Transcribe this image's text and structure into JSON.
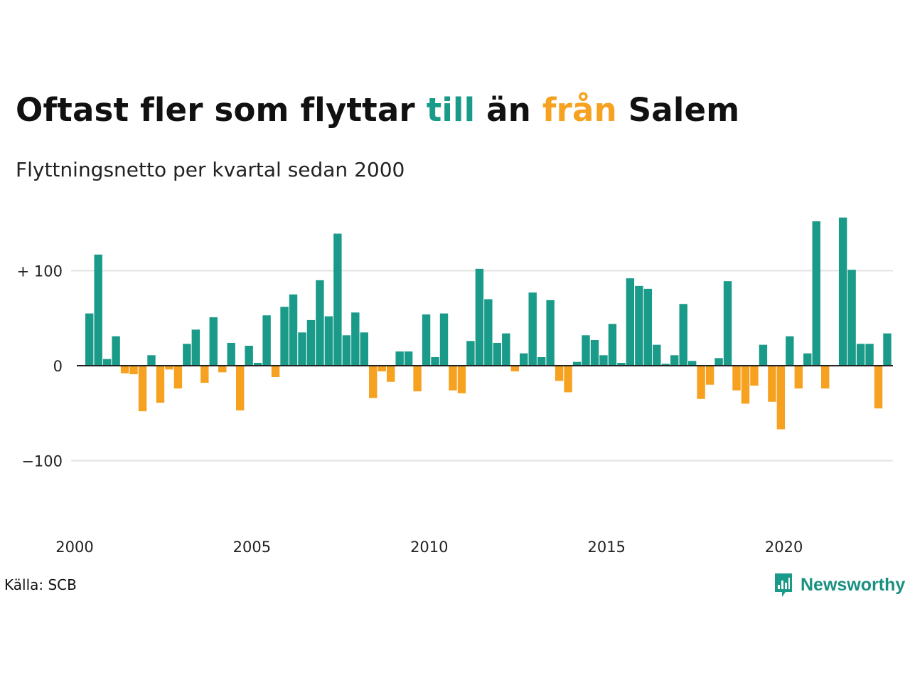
{
  "header": {
    "title_parts": [
      "Oftast fler som flyttar ",
      "till",
      " än ",
      "från",
      " Salem"
    ],
    "subtitle": "Flyttningsnetto per kvartal sedan 2000"
  },
  "colors": {
    "positive": "#1a9a88",
    "negative": "#f6a11f",
    "grid": "#e3e3e3"
  },
  "footer": {
    "source": "Källa: SCB",
    "brand": "Newsworthy"
  },
  "icons": {
    "brand": "newsworthy-logo-icon"
  },
  "chart_data": {
    "type": "bar",
    "title": "Oftast fler som flyttar till än från Salem",
    "subtitle": "Flyttningsnetto per kvartal sedan 2000",
    "xlabel": "",
    "ylabel": "",
    "x_start": "2000Q1",
    "ylim": [
      -170,
      160
    ],
    "yticks": [
      100,
      0,
      -100
    ],
    "ytick_labels": [
      "+ 100",
      "0",
      "−100"
    ],
    "xtick_labels": [
      "2000",
      "2005",
      "2010",
      "2015",
      "2020"
    ],
    "grid": true,
    "legend": "none",
    "values": [
      55,
      117,
      7,
      31,
      -8,
      -9,
      -48,
      11,
      -39,
      -4,
      -24,
      23,
      38,
      -18,
      51,
      -7,
      24,
      -47,
      21,
      3,
      53,
      -12,
      62,
      75,
      35,
      48,
      90,
      52,
      139,
      32,
      56,
      35,
      -34,
      -6,
      -17,
      15,
      15,
      -27,
      54,
      9,
      55,
      -26,
      -29,
      26,
      102,
      70,
      24,
      34,
      -6,
      13,
      77,
      9,
      69,
      -16,
      -28,
      4,
      32,
      27,
      11,
      44,
      3,
      92,
      84,
      81,
      22,
      2,
      11,
      65,
      5,
      -35,
      -20,
      8,
      89,
      -26,
      -40,
      -21,
      22,
      -38,
      -67,
      31,
      -24,
      13,
      152,
      -24,
      0,
      156,
      101,
      23,
      23,
      -45,
      34
    ]
  }
}
